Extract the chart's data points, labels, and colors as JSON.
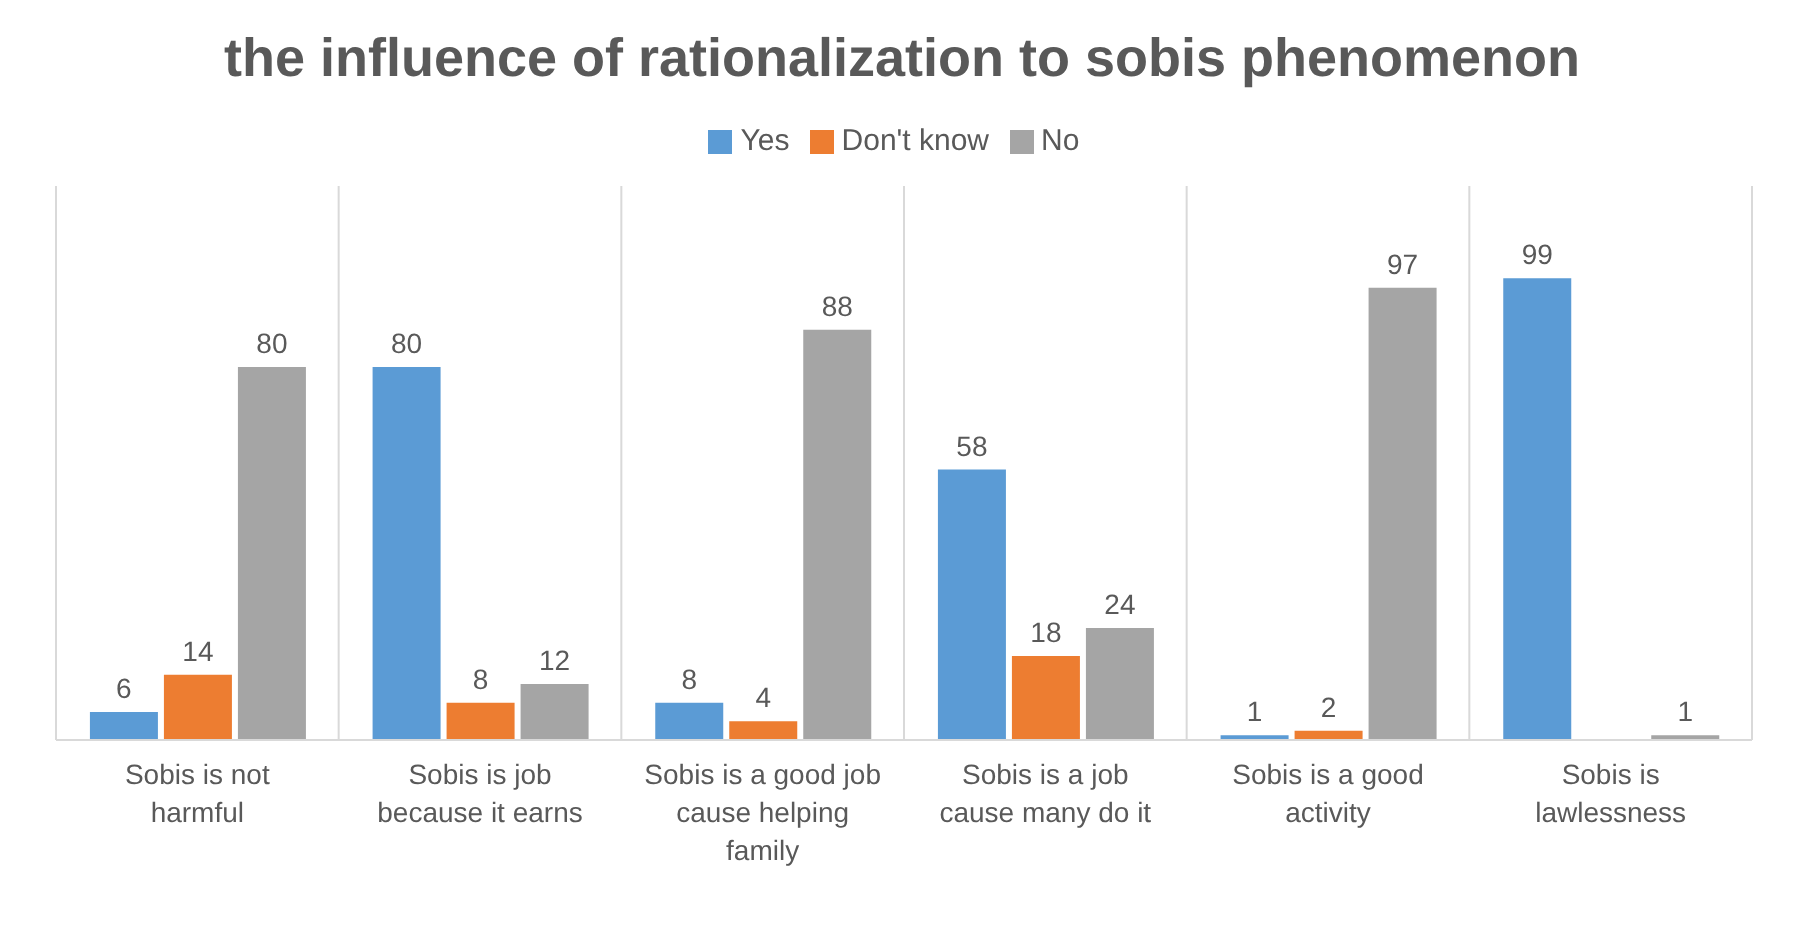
{
  "chart_data": {
    "type": "bar",
    "title": "the influence of rationalization to sobis phenomenon",
    "categories": [
      "Sobis is not harmful",
      "Sobis is job because it earns",
      "Sobis is a good job cause helping family",
      "Sobis is a job cause many do it",
      "Sobis is a good activity",
      "Sobis is lawlessness"
    ],
    "series": [
      {
        "name": "Yes",
        "color": "#5b9bd5",
        "values": [
          6,
          80,
          8,
          58,
          1,
          99
        ],
        "value_labels": [
          "6",
          "80",
          "8",
          "58",
          "1",
          "99"
        ]
      },
      {
        "name": "Don't know",
        "color": "#ed7d31",
        "values": [
          14,
          8,
          4,
          18,
          2,
          null
        ],
        "value_labels": [
          "14",
          "8",
          "4",
          "18",
          "2",
          null
        ]
      },
      {
        "name": "No",
        "color": "#a5a5a5",
        "values": [
          80,
          12,
          88,
          24,
          97,
          1
        ],
        "value_labels": [
          "80",
          "12",
          "88",
          "24",
          "97",
          "1"
        ]
      }
    ],
    "grid": "x",
    "legend": "top"
  }
}
